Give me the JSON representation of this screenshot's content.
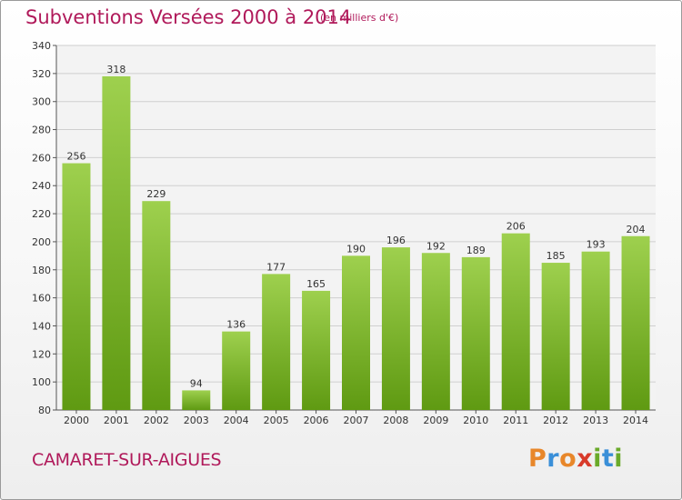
{
  "header": {
    "title": "Subventions Versées 2000 à 2014",
    "unit_note": "(en milliers d'€)"
  },
  "footer": {
    "commune": "CAMARET-SUR-AIGUES",
    "logo_text": "Proxiti"
  },
  "colors": {
    "title": "#b0195a",
    "bar_light": "#9ed04e",
    "bar_dark": "#5f9a12",
    "logo": [
      "#e8872a",
      "#3a8fd8",
      "#e8872a",
      "#d83a2a",
      "#6aaa2a",
      "#3a8fd8",
      "#6aaa2a"
    ]
  },
  "chart_data": {
    "type": "bar",
    "categories": [
      "2000",
      "2001",
      "2002",
      "2003",
      "2004",
      "2005",
      "2006",
      "2007",
      "2008",
      "2009",
      "2010",
      "2011",
      "2012",
      "2013",
      "2014"
    ],
    "values": [
      256,
      318,
      229,
      94,
      136,
      177,
      165,
      190,
      196,
      192,
      189,
      206,
      185,
      193,
      204
    ],
    "ylim": [
      80,
      340
    ],
    "yticks": [
      80,
      100,
      120,
      140,
      160,
      180,
      200,
      220,
      240,
      260,
      280,
      300,
      320,
      340
    ],
    "grid": true,
    "data_labels": true
  }
}
